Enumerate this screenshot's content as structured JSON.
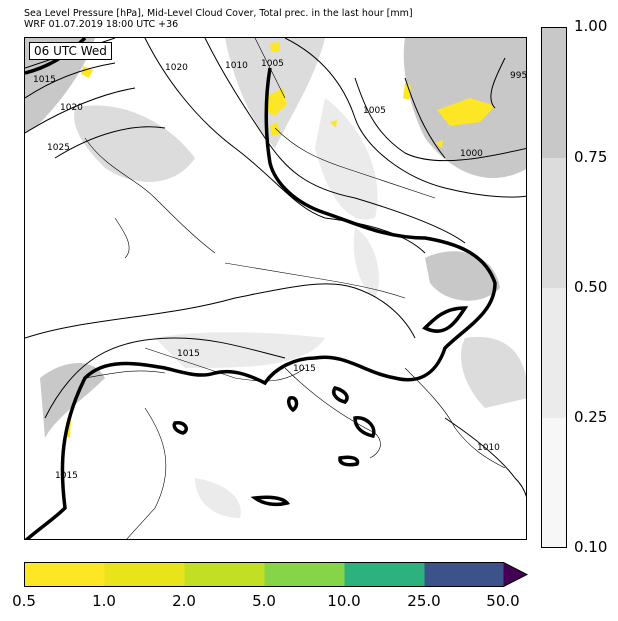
{
  "header": {
    "title_line1": "Sea Level Pressure [hPa], Mid-Level Cloud Cover, Total prec. in the last hour [mm]",
    "title_line2": "WRF 01.07.2019 18:00 UTC +36"
  },
  "map": {
    "valid_time_label": "06 UTC Wed",
    "isobar_labels": [
      "1015",
      "1020",
      "1025",
      "1020",
      "1010",
      "1005",
      "1005",
      "995",
      "1000",
      "1015",
      "1015",
      "1010",
      "1015"
    ]
  },
  "cloud_colorbar": {
    "tick_labels": [
      "1.00",
      "0.75",
      "0.50",
      "0.25",
      "0.10"
    ],
    "colors": [
      "#c8c8c8",
      "#dcdcdc",
      "#ebebeb",
      "#f7f7f7"
    ]
  },
  "precip_colorbar": {
    "tick_labels": [
      "0.5",
      "1.0",
      "2.0",
      "5.0",
      "10.0",
      "25.0",
      "50.0"
    ],
    "colors": [
      "#fde725",
      "#e8e419",
      "#c2df23",
      "#86d549",
      "#2db27d",
      "#3b528b",
      "#440154"
    ]
  }
}
